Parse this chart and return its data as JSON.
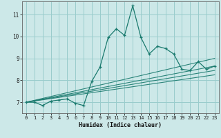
{
  "title": "",
  "xlabel": "Humidex (Indice chaleur)",
  "background_color": "#cce8e8",
  "grid_color": "#99cccc",
  "line_color": "#1a7a6e",
  "xlim": [
    -0.5,
    23.5
  ],
  "ylim": [
    6.5,
    11.6
  ],
  "xticks": [
    0,
    1,
    2,
    3,
    4,
    5,
    6,
    7,
    8,
    9,
    10,
    11,
    12,
    13,
    14,
    15,
    16,
    17,
    18,
    19,
    20,
    21,
    22,
    23
  ],
  "yticks": [
    7,
    8,
    9,
    10,
    11
  ],
  "main_series": {
    "x": [
      0,
      1,
      2,
      3,
      4,
      5,
      6,
      7,
      8,
      9,
      10,
      11,
      12,
      13,
      14,
      15,
      16,
      17,
      18,
      19,
      20,
      21,
      22,
      23
    ],
    "y": [
      7.0,
      7.0,
      6.85,
      7.05,
      7.1,
      7.15,
      6.95,
      6.85,
      7.95,
      8.6,
      9.95,
      10.35,
      10.05,
      11.4,
      9.95,
      9.2,
      9.55,
      9.45,
      9.2,
      8.5,
      8.45,
      8.85,
      8.5,
      8.65
    ]
  },
  "linear_series": [
    {
      "x": [
        0,
        23
      ],
      "y": [
        7.0,
        9.0
      ]
    },
    {
      "x": [
        0,
        23
      ],
      "y": [
        7.0,
        8.65
      ]
    },
    {
      "x": [
        0,
        23
      ],
      "y": [
        7.0,
        8.45
      ]
    },
    {
      "x": [
        0,
        23
      ],
      "y": [
        7.0,
        8.25
      ]
    }
  ]
}
